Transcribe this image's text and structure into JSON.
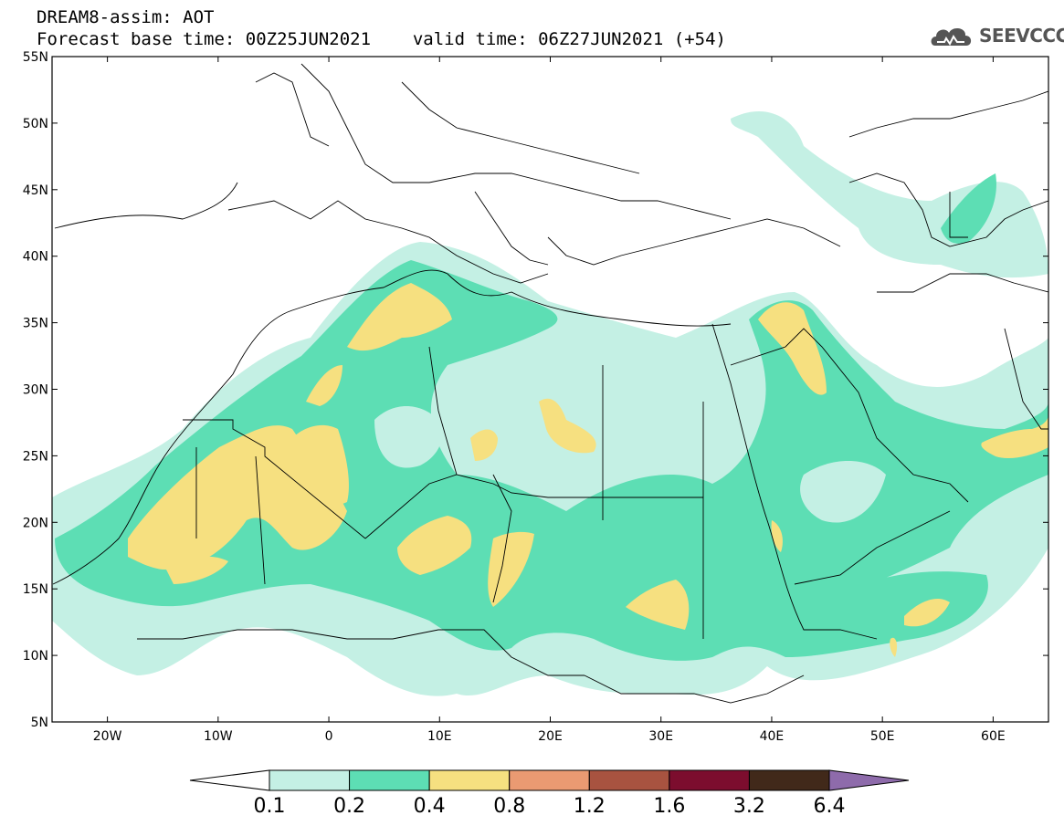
{
  "header": {
    "title": "DREAM8-assim: AOT",
    "base_label": "Forecast base time: 00Z25JUN2021",
    "valid_label": "valid time: 06Z27JUN2021 (+54)"
  },
  "logo": {
    "text": "SEEVCCC"
  },
  "map": {
    "lon_range": [
      -25,
      65
    ],
    "lat_range": [
      5,
      55
    ],
    "lon_ticks": [
      {
        "value": -20,
        "label": "20W"
      },
      {
        "value": -10,
        "label": "10W"
      },
      {
        "value": 0,
        "label": "0"
      },
      {
        "value": 10,
        "label": "10E"
      },
      {
        "value": 20,
        "label": "20E"
      },
      {
        "value": 30,
        "label": "30E"
      },
      {
        "value": 40,
        "label": "40E"
      },
      {
        "value": 50,
        "label": "50E"
      },
      {
        "value": 60,
        "label": "60E"
      }
    ],
    "lat_ticks": [
      {
        "value": 55,
        "label": "55N"
      },
      {
        "value": 50,
        "label": "50N"
      },
      {
        "value": 45,
        "label": "45N"
      },
      {
        "value": 40,
        "label": "40N"
      },
      {
        "value": 35,
        "label": "35N"
      },
      {
        "value": 30,
        "label": "30N"
      },
      {
        "value": 25,
        "label": "25N"
      },
      {
        "value": 20,
        "label": "20N"
      },
      {
        "value": 15,
        "label": "15N"
      },
      {
        "value": 10,
        "label": "10N"
      },
      {
        "value": 5,
        "label": "5N"
      }
    ]
  },
  "colorbar": {
    "levels": [
      "0.1",
      "0.2",
      "0.4",
      "0.8",
      "1.2",
      "1.6",
      "3.2",
      "6.4"
    ],
    "colors": [
      "#ffffff",
      "#c4f0e4",
      "#5ddeb4",
      "#f6e080",
      "#ea9a72",
      "#a85340",
      "#7c0d2e",
      "#41291a",
      "#8e6bab"
    ]
  },
  "colors": {
    "low": "#c4f0e4",
    "mid": "#5ddeb4",
    "high": "#f6e080"
  }
}
